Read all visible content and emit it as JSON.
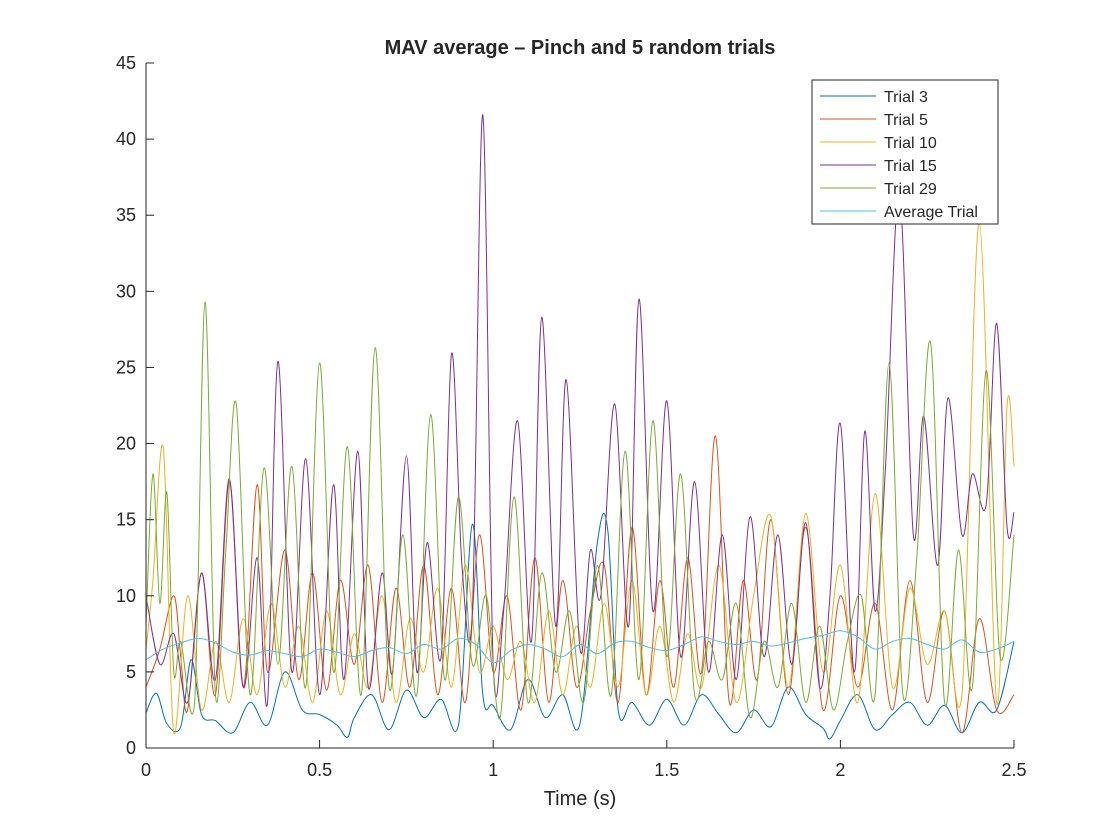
{
  "chart_data": {
    "type": "line",
    "title": "MAV average – Pinch and 5 random trials",
    "xlabel": "Time (s)",
    "ylabel": "",
    "xlim": [
      0,
      2.5
    ],
    "ylim": [
      0,
      45
    ],
    "xticks": [
      0,
      0.5,
      1,
      1.5,
      2,
      2.5
    ],
    "xtick_labels": [
      "0",
      "0.5",
      "1",
      "1.5",
      "2",
      "2.5"
    ],
    "yticks": [
      0,
      5,
      10,
      15,
      20,
      25,
      30,
      35,
      40,
      45
    ],
    "ytick_labels": [
      "0",
      "5",
      "10",
      "15",
      "20",
      "25",
      "30",
      "35",
      "40",
      "45"
    ],
    "grid": false,
    "legend_position": "top-right",
    "series": [
      {
        "name": "Trial 3",
        "color": "#0072BD",
        "x": [
          0,
          0.03,
          0.06,
          0.1,
          0.13,
          0.16,
          0.2,
          0.25,
          0.3,
          0.35,
          0.4,
          0.45,
          0.5,
          0.55,
          0.58,
          0.6,
          0.65,
          0.7,
          0.75,
          0.8,
          0.85,
          0.9,
          0.94,
          0.97,
          1.0,
          1.05,
          1.1,
          1.15,
          1.2,
          1.25,
          1.3,
          1.33,
          1.36,
          1.4,
          1.45,
          1.5,
          1.55,
          1.6,
          1.65,
          1.7,
          1.75,
          1.8,
          1.85,
          1.9,
          1.95,
          1.97,
          2.0,
          2.05,
          2.1,
          2.15,
          2.2,
          2.25,
          2.3,
          2.35,
          2.4,
          2.45,
          2.5
        ],
        "y": [
          2.3,
          3.6,
          1.6,
          1.4,
          5.8,
          2.2,
          1.8,
          1.0,
          3.0,
          1.5,
          5.0,
          2.5,
          2.2,
          1.5,
          0.7,
          2.0,
          3.5,
          1.2,
          3.8,
          2.0,
          3.2,
          1.5,
          14.7,
          3.5,
          2.8,
          1.2,
          4.5,
          2.0,
          3.5,
          1.6,
          13.5,
          14.3,
          2.5,
          3.0,
          1.5,
          3.2,
          1.5,
          3.5,
          2.2,
          1.0,
          2.5,
          1.4,
          4.0,
          2.2,
          1.3,
          0.6,
          1.8,
          3.5,
          1.2,
          2.2,
          3.0,
          1.5,
          2.8,
          1.0,
          3.0,
          2.5,
          7.0
        ]
      },
      {
        "name": "Trial 5",
        "color": "#D95319",
        "x": [
          0,
          0.04,
          0.08,
          0.1,
          0.12,
          0.16,
          0.2,
          0.24,
          0.28,
          0.32,
          0.35,
          0.4,
          0.44,
          0.48,
          0.52,
          0.56,
          0.6,
          0.64,
          0.68,
          0.72,
          0.76,
          0.8,
          0.84,
          0.88,
          0.92,
          0.96,
          1.0,
          1.04,
          1.08,
          1.12,
          1.16,
          1.2,
          1.24,
          1.28,
          1.32,
          1.36,
          1.4,
          1.44,
          1.48,
          1.52,
          1.56,
          1.6,
          1.64,
          1.68,
          1.72,
          1.76,
          1.8,
          1.85,
          1.9,
          1.95,
          2.0,
          2.05,
          2.1,
          2.15,
          2.2,
          2.25,
          2.3,
          2.35,
          2.4,
          2.45,
          2.5
        ],
        "y": [
          4.0,
          6.5,
          10.0,
          6.0,
          2.5,
          11.5,
          3.5,
          17.5,
          4.0,
          17.3,
          5.0,
          13.0,
          4.5,
          11.5,
          3.8,
          11.0,
          5.5,
          12.0,
          3.0,
          10.5,
          4.0,
          12.0,
          3.5,
          10.5,
          3.0,
          14.0,
          5.0,
          10.0,
          2.5,
          12.5,
          3.0,
          11.0,
          4.0,
          9.0,
          12.0,
          3.0,
          14.5,
          3.5,
          11.0,
          4.0,
          12.5,
          5.0,
          20.5,
          3.0,
          11.0,
          4.5,
          15.0,
          3.5,
          14.5,
          2.5,
          10.0,
          4.0,
          9.5,
          2.5,
          11.0,
          3.0,
          9.0,
          1.0,
          8.5,
          2.5,
          3.5
        ]
      },
      {
        "name": "Trial 10",
        "color": "#EDB120",
        "x": [
          0,
          0.02,
          0.05,
          0.08,
          0.12,
          0.16,
          0.2,
          0.24,
          0.28,
          0.32,
          0.36,
          0.4,
          0.44,
          0.48,
          0.52,
          0.56,
          0.6,
          0.64,
          0.68,
          0.72,
          0.76,
          0.8,
          0.84,
          0.88,
          0.92,
          0.96,
          1.0,
          1.04,
          1.08,
          1.12,
          1.16,
          1.2,
          1.24,
          1.28,
          1.32,
          1.36,
          1.4,
          1.44,
          1.48,
          1.52,
          1.56,
          1.6,
          1.65,
          1.7,
          1.75,
          1.8,
          1.85,
          1.9,
          1.95,
          2.0,
          2.05,
          2.1,
          2.15,
          2.2,
          2.25,
          2.3,
          2.35,
          2.4,
          2.45,
          2.48,
          2.5
        ],
        "y": [
          6.5,
          11.0,
          19.7,
          1.0,
          10.0,
          2.5,
          7.0,
          3.0,
          8.5,
          3.5,
          9.5,
          4.0,
          8.0,
          3.0,
          9.0,
          3.5,
          7.5,
          4.0,
          10.0,
          3.0,
          8.5,
          5.0,
          10.5,
          4.0,
          12.0,
          5.0,
          8.0,
          4.5,
          7.0,
          3.0,
          9.0,
          3.5,
          8.0,
          4.0,
          9.5,
          4.0,
          11.0,
          3.5,
          8.0,
          3.0,
          7.5,
          4.0,
          12.0,
          3.0,
          10.0,
          15.2,
          4.0,
          15.4,
          5.0,
          12.0,
          3.0,
          16.7,
          4.0,
          10.5,
          5.5,
          9.0,
          3.5,
          34.5,
          3.0,
          22.5,
          18.5
        ]
      },
      {
        "name": "Trial 15",
        "color": "#7E2F8E",
        "x": [
          0,
          0.04,
          0.08,
          0.12,
          0.16,
          0.2,
          0.24,
          0.28,
          0.32,
          0.35,
          0.38,
          0.42,
          0.46,
          0.5,
          0.54,
          0.57,
          0.61,
          0.64,
          0.68,
          0.71,
          0.75,
          0.78,
          0.81,
          0.85,
          0.88,
          0.91,
          0.94,
          0.97,
          1.0,
          1.03,
          1.07,
          1.11,
          1.14,
          1.18,
          1.21,
          1.25,
          1.28,
          1.31,
          1.35,
          1.39,
          1.42,
          1.46,
          1.5,
          1.54,
          1.58,
          1.62,
          1.66,
          1.7,
          1.74,
          1.78,
          1.82,
          1.86,
          1.9,
          1.94,
          1.97,
          2.0,
          2.04,
          2.07,
          2.1,
          2.13,
          2.17,
          2.21,
          2.24,
          2.28,
          2.31,
          2.35,
          2.38,
          2.42,
          2.45,
          2.48,
          2.5
        ],
        "y": [
          10.0,
          5.5,
          7.5,
          3.0,
          11.5,
          4.5,
          17.7,
          4.0,
          12.5,
          3.0,
          25.4,
          5.0,
          19.0,
          3.5,
          17.3,
          4.5,
          19.5,
          4.0,
          11.5,
          5.0,
          19.2,
          5.0,
          13.5,
          6.0,
          25.9,
          12.0,
          9.0,
          41.6,
          5.5,
          9.0,
          21.5,
          7.0,
          28.3,
          8.0,
          24.2,
          6.5,
          13.0,
          10.0,
          22.6,
          8.0,
          29.5,
          9.0,
          22.8,
          6.0,
          17.5,
          5.0,
          14.0,
          4.5,
          15.2,
          6.0,
          14.0,
          5.5,
          14.8,
          4.0,
          10.0,
          21.3,
          5.0,
          20.8,
          9.0,
          18.5,
          36.5,
          14.0,
          21.8,
          12.0,
          23.0,
          14.0,
          18.0,
          16.0,
          27.9,
          14.5,
          15.5
        ]
      },
      {
        "name": "Trial 29",
        "color": "#77AC30",
        "x": [
          0,
          0.02,
          0.04,
          0.06,
          0.08,
          0.1,
          0.14,
          0.17,
          0.2,
          0.23,
          0.26,
          0.3,
          0.34,
          0.38,
          0.42,
          0.46,
          0.5,
          0.54,
          0.58,
          0.62,
          0.66,
          0.7,
          0.74,
          0.78,
          0.82,
          0.86,
          0.9,
          0.94,
          0.98,
          1.02,
          1.06,
          1.1,
          1.14,
          1.18,
          1.22,
          1.26,
          1.3,
          1.34,
          1.38,
          1.42,
          1.46,
          1.5,
          1.54,
          1.58,
          1.62,
          1.66,
          1.7,
          1.74,
          1.78,
          1.82,
          1.86,
          1.9,
          1.94,
          1.98,
          2.02,
          2.06,
          2.1,
          2.14,
          2.18,
          2.22,
          2.26,
          2.3,
          2.34,
          2.38,
          2.42,
          2.46,
          2.5
        ],
        "y": [
          8.0,
          18.0,
          9.5,
          16.8,
          5.0,
          7.0,
          3.0,
          29.3,
          3.5,
          13.0,
          22.6,
          3.5,
          18.4,
          5.5,
          18.5,
          4.0,
          25.3,
          5.0,
          19.8,
          3.5,
          26.3,
          4.0,
          14.0,
          3.5,
          21.9,
          4.5,
          16.5,
          5.5,
          10.0,
          2.0,
          16.5,
          3.0,
          11.5,
          5.0,
          9.0,
          3.0,
          12.0,
          3.5,
          19.5,
          4.5,
          21.5,
          6.0,
          18.0,
          3.5,
          7.0,
          4.5,
          9.5,
          2.0,
          7.0,
          4.0,
          9.5,
          3.0,
          8.0,
          2.5,
          7.0,
          10.0,
          3.5,
          25.3,
          3.5,
          12.5,
          26.6,
          3.0,
          13.0,
          4.0,
          24.8,
          6.0,
          14.0
        ]
      },
      {
        "name": "Average Trial",
        "color": "#4DBEEE",
        "x": [
          0,
          0.05,
          0.1,
          0.15,
          0.2,
          0.25,
          0.3,
          0.35,
          0.4,
          0.45,
          0.5,
          0.55,
          0.6,
          0.65,
          0.7,
          0.75,
          0.8,
          0.85,
          0.9,
          0.95,
          1.0,
          1.05,
          1.1,
          1.15,
          1.2,
          1.25,
          1.3,
          1.35,
          1.4,
          1.45,
          1.5,
          1.55,
          1.6,
          1.65,
          1.7,
          1.75,
          1.8,
          1.85,
          1.9,
          1.95,
          2.0,
          2.05,
          2.1,
          2.15,
          2.2,
          2.25,
          2.3,
          2.35,
          2.4,
          2.45,
          2.5
        ],
        "y": [
          5.8,
          6.5,
          6.9,
          7.2,
          6.9,
          6.3,
          6.1,
          6.4,
          6.2,
          6.0,
          6.5,
          6.3,
          6.0,
          6.4,
          6.6,
          6.2,
          6.8,
          6.5,
          7.2,
          6.8,
          5.6,
          6.4,
          6.8,
          6.5,
          6.0,
          6.8,
          6.2,
          6.9,
          7.0,
          6.6,
          6.4,
          6.8,
          7.3,
          7.0,
          6.8,
          7.0,
          6.7,
          6.9,
          7.2,
          7.4,
          7.7,
          7.3,
          6.5,
          7.0,
          7.2,
          6.8,
          6.5,
          7.1,
          6.3,
          6.5,
          7.0
        ]
      }
    ]
  }
}
